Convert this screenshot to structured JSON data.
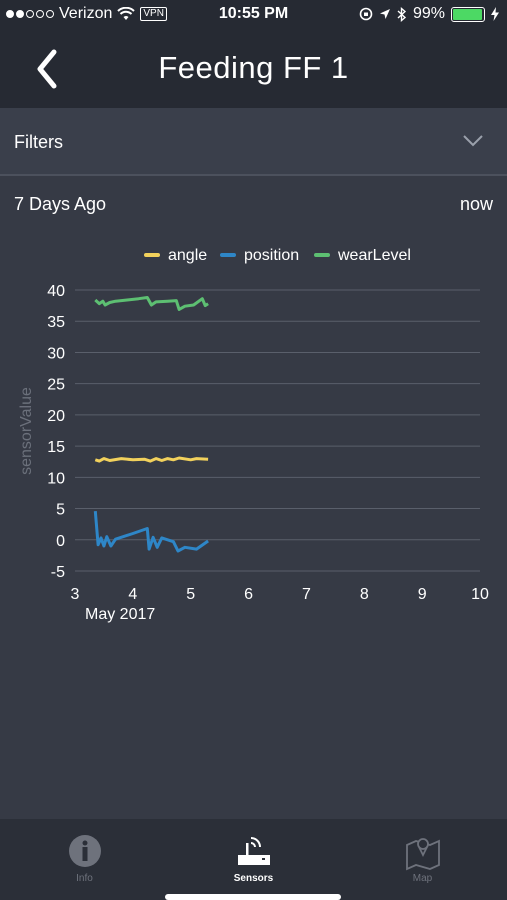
{
  "status_bar": {
    "carrier": "Verizon",
    "vpn": "VPN",
    "time": "10:55 PM",
    "battery": "99%",
    "battery_level": 0.99
  },
  "nav": {
    "title": "Feeding FF 1"
  },
  "filters": {
    "label": "Filters"
  },
  "range": {
    "start": "7 Days Ago",
    "end": "now"
  },
  "chart_data": {
    "type": "line",
    "ylabel": "sensorValue",
    "x_ticks": [
      "3",
      "4",
      "5",
      "6",
      "7",
      "8",
      "9",
      "10"
    ],
    "x_sublabel": "May 2017",
    "y_ticks": [
      "40",
      "35",
      "30",
      "25",
      "20",
      "15",
      "10",
      "5",
      "0",
      "-5"
    ],
    "xlim": [
      3,
      10
    ],
    "ylim": [
      -5,
      40
    ],
    "grid": true,
    "legend_position": "top",
    "series": [
      {
        "name": "angle",
        "color": "#f2d15c",
        "points": [
          [
            3.35,
            12.8
          ],
          [
            3.42,
            12.6
          ],
          [
            3.5,
            13.0
          ],
          [
            3.6,
            12.7
          ],
          [
            3.8,
            13.0
          ],
          [
            4.0,
            12.8
          ],
          [
            4.2,
            12.9
          ],
          [
            4.3,
            12.6
          ],
          [
            4.4,
            13.0
          ],
          [
            4.5,
            12.7
          ],
          [
            4.6,
            13.0
          ],
          [
            4.7,
            12.8
          ],
          [
            4.8,
            13.1
          ],
          [
            5.0,
            12.8
          ],
          [
            5.1,
            13.0
          ],
          [
            5.3,
            12.9
          ]
        ]
      },
      {
        "name": "position",
        "color": "#2e86c7",
        "points": [
          [
            3.35,
            4.6
          ],
          [
            3.4,
            -0.8
          ],
          [
            3.45,
            0.3
          ],
          [
            3.5,
            -1.0
          ],
          [
            3.55,
            0.5
          ],
          [
            3.62,
            -1.0
          ],
          [
            3.7,
            0.1
          ],
          [
            4.0,
            1.0
          ],
          [
            4.25,
            1.8
          ],
          [
            4.28,
            -1.5
          ],
          [
            4.35,
            0.4
          ],
          [
            4.42,
            -1.2
          ],
          [
            4.5,
            0.3
          ],
          [
            4.7,
            -0.3
          ],
          [
            4.78,
            -1.8
          ],
          [
            4.9,
            -1.2
          ],
          [
            5.1,
            -1.5
          ],
          [
            5.3,
            -0.2
          ]
        ]
      },
      {
        "name": "wearLevel",
        "color": "#5dbf72",
        "points": [
          [
            3.35,
            38.4
          ],
          [
            3.42,
            37.8
          ],
          [
            3.48,
            38.2
          ],
          [
            3.52,
            37.6
          ],
          [
            3.6,
            38.0
          ],
          [
            3.7,
            38.2
          ],
          [
            3.9,
            38.4
          ],
          [
            4.1,
            38.6
          ],
          [
            4.25,
            38.8
          ],
          [
            4.32,
            37.6
          ],
          [
            4.4,
            38.1
          ],
          [
            4.6,
            38.2
          ],
          [
            4.75,
            38.3
          ],
          [
            4.8,
            36.9
          ],
          [
            4.9,
            37.4
          ],
          [
            5.05,
            37.6
          ],
          [
            5.2,
            38.6
          ],
          [
            5.25,
            37.5
          ],
          [
            5.3,
            37.8
          ]
        ]
      }
    ]
  },
  "tabs": [
    {
      "label": "Info",
      "icon": "info-icon",
      "active": false
    },
    {
      "label": "Sensors",
      "icon": "sensor-icon",
      "active": true
    },
    {
      "label": "Map",
      "icon": "map-icon",
      "active": false
    }
  ]
}
